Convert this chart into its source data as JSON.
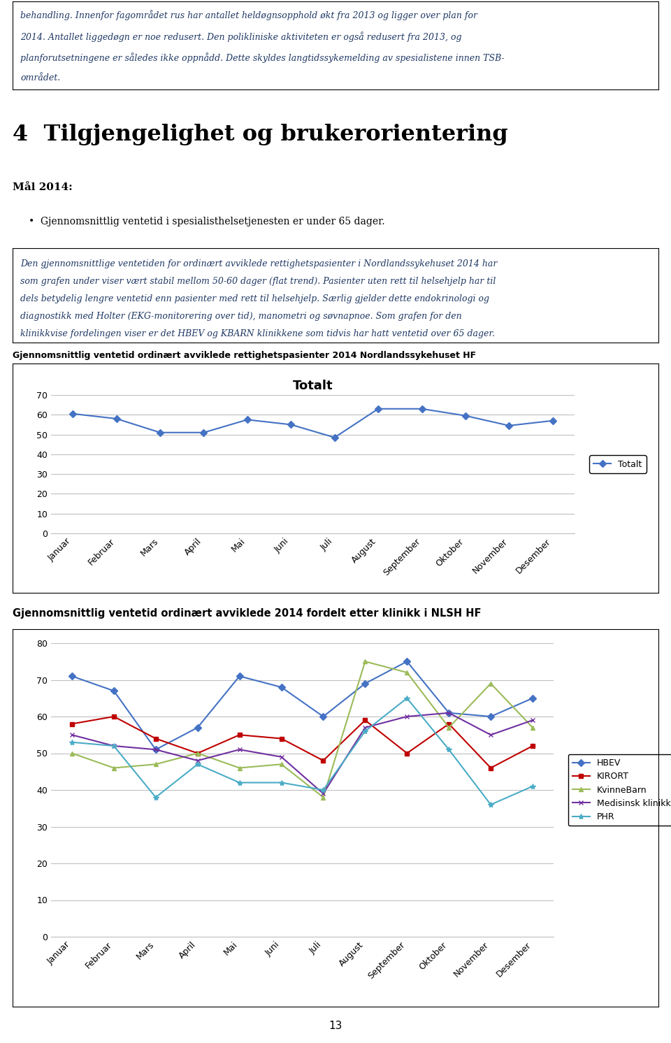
{
  "months": [
    "Januar",
    "Februar",
    "Mars",
    "April",
    "Mai",
    "Juni",
    "Juli",
    "August",
    "September",
    "Oktober",
    "November",
    "Desember"
  ],
  "chart1_title_above": "Gjennomsnittlig ventetid ordinært avviklede rettighetspasienter 2014 Nordlandssykehuset HF",
  "chart1_inner_title": "Totalt",
  "chart1_totalt": [
    60.5,
    58,
    51,
    51,
    57.5,
    55,
    48.5,
    63,
    63,
    59.5,
    54.5,
    57
  ],
  "chart1_legend": "Totalt",
  "chart1_color": "#4472C4",
  "chart1_ylim": [
    0,
    70
  ],
  "chart1_yticks": [
    0,
    10,
    20,
    30,
    40,
    50,
    60,
    70
  ],
  "chart2_title_above": "Gjennomsnittlig ventetid ordinært avviklede 2014 fordelt etter klinikk i NLSH HF",
  "chart2_ylim": [
    0,
    80
  ],
  "chart2_yticks": [
    0,
    10,
    20,
    30,
    40,
    50,
    60,
    70,
    80
  ],
  "HBEV": [
    71,
    67,
    51,
    57,
    71,
    68,
    60,
    69,
    75,
    61,
    60,
    65
  ],
  "KIRORT": [
    58,
    60,
    54,
    50,
    55,
    54,
    48,
    59,
    50,
    58,
    46,
    52
  ],
  "KvinneBarn": [
    50,
    46,
    47,
    50,
    46,
    47,
    38,
    75,
    72,
    57,
    69,
    57
  ],
  "MedisinKlinikk": [
    55,
    52,
    51,
    48,
    51,
    49,
    39,
    57,
    60,
    61,
    55,
    59
  ],
  "PHR": [
    53,
    52,
    38,
    47,
    42,
    42,
    40,
    56,
    65,
    51,
    36,
    41
  ],
  "colors": {
    "HBEV": "#4472C4",
    "KIRORT": "#C00000",
    "KvinneBarn": "#9BBB59",
    "MedisinKlinikk": "#7030A0",
    "PHR": "#4BACC6"
  },
  "header_lines": [
    "behandling. Innenfor fagområdet rus har antallet heldøgnsopphold økt fra 2013 og ligger over plan for",
    "2014. Antallet liggedøgn er noe redusert. Den polikliniske aktiviteten er også redusert fra 2013, og",
    "planforutsetningene er således ikke oppnådd. Dette skyldes langtidssykemelding av spesialistene innen TSB-",
    "området."
  ],
  "section_title": "4  Tilgjengelighet og brukerorientering",
  "mal_title": "Mål 2014:",
  "mal_bullet": "Gjennomsnittlig ventetid i spesialisthelsetjenesten er under 65 dager.",
  "body_lines": [
    "Den gjennomsnittlige ventetiden for ordinært avviklede rettighetspasienter i Nordlandssykehuset 2014 har",
    "som grafen under viser vært stabil mellom 50-60 dager (flat trend). Pasienter uten rett til helsehjelp har til",
    "dels betydelig lengre ventetid enn pasienter med rett til helsehjelp. Særlig gjelder dette endokrinologi og",
    "diagnostikk med Holter (EKG-monitorering over tid), manometri og søvnapnoe. Som grafen for den",
    "klinikkvise fordelingen viser er det HBEV og KBARN klinikkene som tidvis har hatt ventetid over 65 dager."
  ],
  "page_number": "13",
  "text_color": "#1F3864"
}
